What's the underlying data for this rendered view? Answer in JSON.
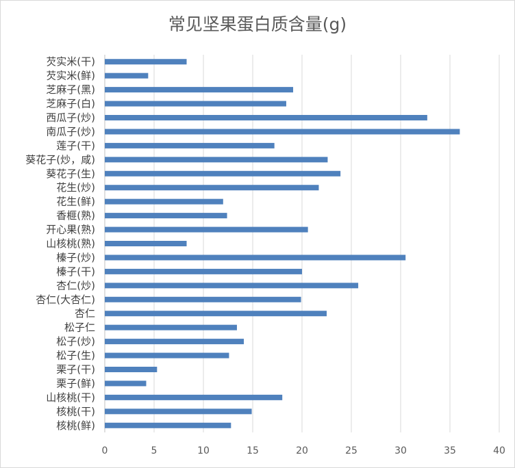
{
  "chart_data": {
    "type": "bar",
    "orientation": "horizontal",
    "title": "常见坚果蛋白质含量(g)",
    "xlabel": "",
    "ylabel": "",
    "categories": [
      "芡实米(干)",
      "芡实米(鲜)",
      "芝麻子(黑)",
      "芝麻子(白)",
      "西瓜子(炒)",
      "南瓜子(炒)",
      "莲子(干)",
      "葵花子(炒，咸)",
      "葵花子(生)",
      "花生(炒)",
      "花生(鲜)",
      "香榧(熟)",
      "开心果(熟)",
      "山核桃(熟)",
      "榛子(炒)",
      "榛子(干)",
      "杏仁(炒)",
      "杏仁(大杏仁)",
      "杏仁",
      "松子仁",
      "松子(炒)",
      "松子(生)",
      "栗子(干)",
      "栗子(鲜)",
      "山核桃(干)",
      "核桃(干)",
      "核桃(鲜)"
    ],
    "values": [
      8.3,
      4.4,
      19.1,
      18.4,
      32.7,
      36.0,
      17.2,
      22.6,
      23.9,
      21.7,
      12.0,
      12.4,
      20.6,
      8.3,
      30.5,
      20.0,
      25.7,
      19.9,
      22.5,
      13.4,
      14.1,
      12.6,
      5.3,
      4.2,
      18.0,
      14.9,
      12.8
    ],
    "xlim": [
      0,
      40
    ],
    "xticks": [
      "0",
      "5",
      "10",
      "15",
      "20",
      "25",
      "30",
      "35",
      "40"
    ],
    "grid": "vertical",
    "legend": "none",
    "bar_color": "#4f81bd",
    "grid_color": "#d9d9d9",
    "axis_color": "#bfbfbf"
  }
}
